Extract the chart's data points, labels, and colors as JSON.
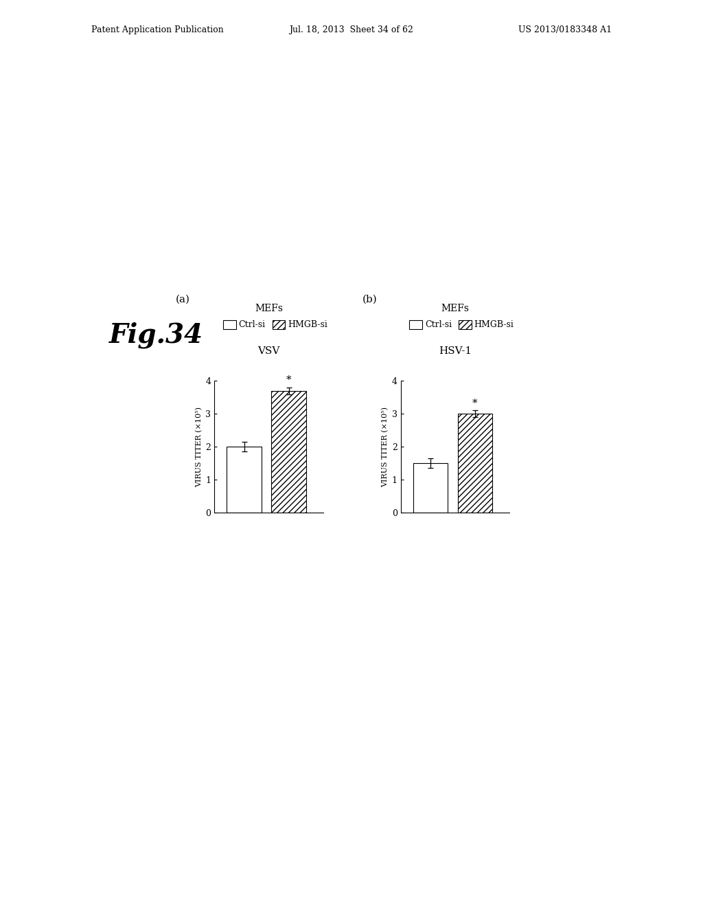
{
  "panel_a": {
    "label": "(a)",
    "title_line1": "MEFs",
    "legend_text": "□Ctrl-si ☒ HMGB-si",
    "title_line2": "VSV",
    "bars": [
      {
        "name": "Ctrl-si",
        "value": 2.0,
        "error": 0.15,
        "color": "white",
        "hatch": ""
      },
      {
        "name": "HMGB-si",
        "value": 3.7,
        "error": 0.1,
        "color": "white",
        "hatch": "////"
      }
    ],
    "significant": [
      false,
      true
    ]
  },
  "panel_b": {
    "label": "(b)",
    "title_line1": "MEFs",
    "legend_text": "□Ctrl-si ☒ HMGB-si",
    "title_line2": "HSV-1",
    "bars": [
      {
        "name": "Ctrl-si",
        "value": 1.5,
        "error": 0.15,
        "color": "white",
        "hatch": ""
      },
      {
        "name": "HMGB-si",
        "value": 3.0,
        "error": 0.1,
        "color": "white",
        "hatch": "////"
      }
    ],
    "significant": [
      false,
      true
    ]
  },
  "ylabel": "VIRUS TITER (×10⁵)",
  "ylim": [
    0,
    4
  ],
  "yticks": [
    0,
    1,
    2,
    3,
    4
  ],
  "fig_label": "Fig.34",
  "header_left": "Patent Application Publication",
  "header_mid": "Jul. 18, 2013  Sheet 34 of 62",
  "header_right": "US 2013/0183348 A1",
  "background_color": "#ffffff"
}
